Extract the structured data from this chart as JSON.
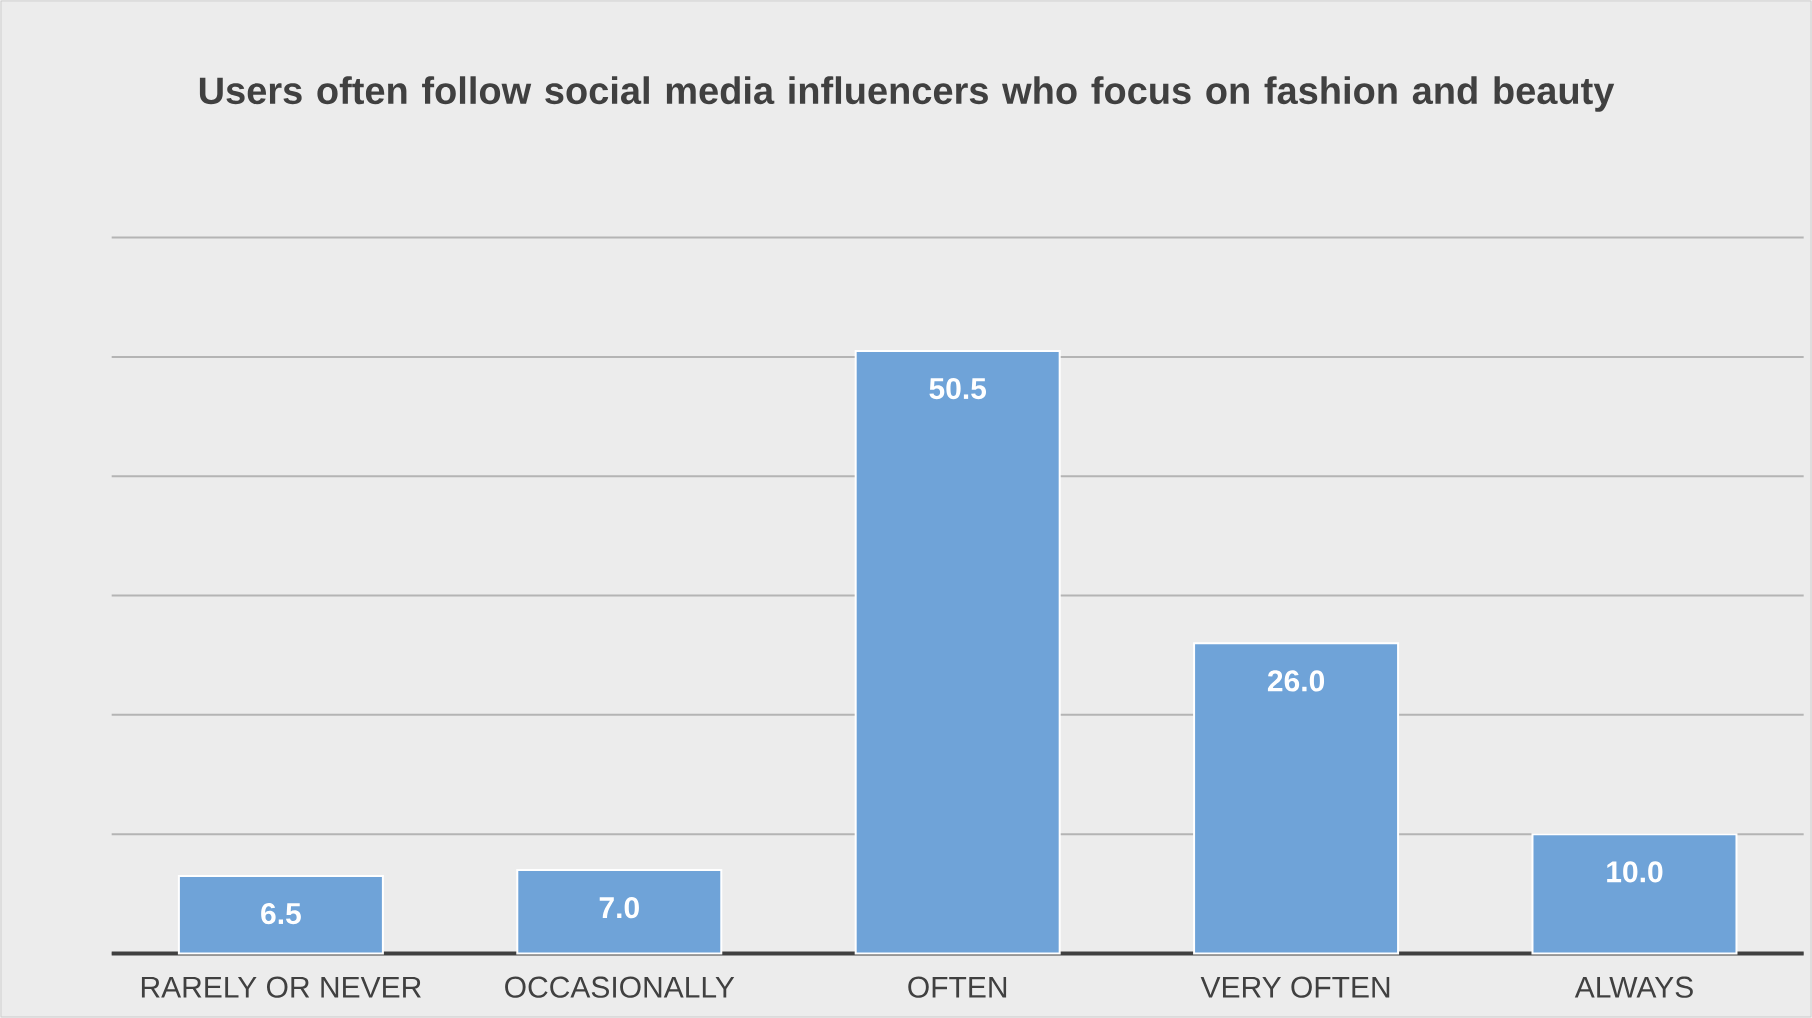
{
  "chart_data": {
    "type": "bar",
    "title": "Users often follow social media influencers who focus on fashion and beauty",
    "categories": [
      "RARELY OR NEVER",
      "OCCASIONALLY",
      "OFTEN",
      "VERY OFTEN",
      "ALWAYS"
    ],
    "values": [
      6.5,
      7.0,
      50.5,
      26.0,
      10.0
    ],
    "value_labels": [
      "6.5",
      "7.0",
      "50.5",
      "26.0",
      "10.0"
    ],
    "color": "#6fa3d8",
    "ylim": [
      0,
      60
    ],
    "yticks": [
      {
        "value": 0,
        "label": null
      },
      {
        "value": 10,
        "label": null
      },
      {
        "value": 20,
        "label": null
      },
      {
        "value": 30,
        "label": null
      },
      {
        "value": 40,
        "label": null
      },
      {
        "value": 50,
        "label": null
      },
      {
        "value": 60,
        "label": null
      }
    ],
    "tick_labels": "x",
    "grid": "y"
  }
}
